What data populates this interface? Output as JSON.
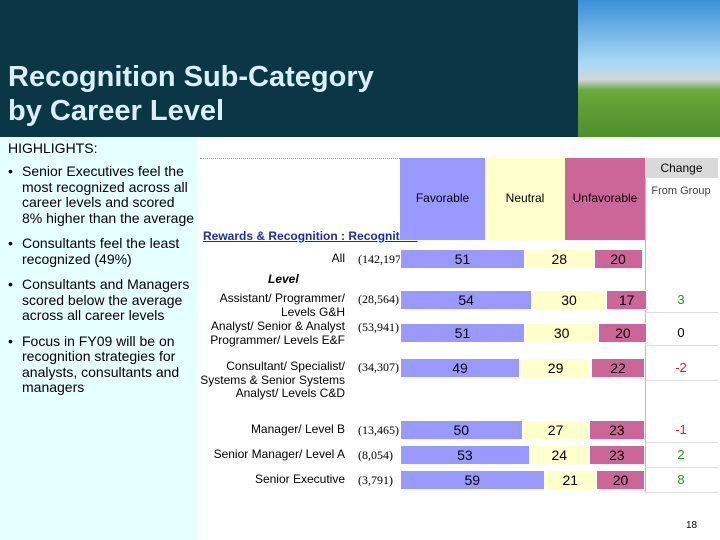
{
  "header": {
    "title_lines": [
      "Recognition Sub-Category",
      "by Career Level"
    ]
  },
  "highlights": {
    "heading": "HIGHLIGHTS:",
    "bullets": [
      "Senior Executives feel the most recognized across all career levels and scored 8% higher than the average",
      "Consultants feel the least recognized (49%)",
      "Consultants and Managers scored below the average across all career levels",
      "Focus in FY09 will be on recognition strategies for analysts, consultants and managers"
    ]
  },
  "chart_data": {
    "type": "bar",
    "orientation": "horizontal",
    "stacked": true,
    "title": "Rewards & Recognition : Recognition",
    "y_label": "Level",
    "categories": [
      "All",
      "Assistant/ Programmer/ Levels G&H",
      "Analyst/ Senior & Analyst Programmer/ Levels E&F",
      "Consultant/ Specialist/ Systems & Senior Systems Analyst/ Levels C&D",
      "Manager/ Level B",
      "Senior Manager/ Level A",
      "Senior Executive"
    ],
    "sample_sizes": [
      "(142,197)",
      "(28,564)",
      "(53,941)",
      "(34,307)",
      "(13,465)",
      "(8,054)",
      "(3,791)"
    ],
    "xlim": [
      0,
      100
    ],
    "series": [
      {
        "name": "Favorable",
        "color": "#9999ff",
        "values": [
          51,
          54,
          51,
          49,
          50,
          53,
          59
        ]
      },
      {
        "name": "Neutral",
        "color": "#ffffcc",
        "values": [
          28,
          30,
          30,
          29,
          27,
          24,
          21
        ]
      },
      {
        "name": "Unfavorable",
        "color": "#cc6699",
        "values": [
          20,
          17,
          20,
          22,
          23,
          23,
          20
        ]
      }
    ],
    "change": {
      "title": "Change",
      "subtitle": "From Group",
      "values": [
        null,
        3,
        0,
        -2,
        -1,
        2,
        8
      ]
    }
  },
  "slide_number": "18"
}
